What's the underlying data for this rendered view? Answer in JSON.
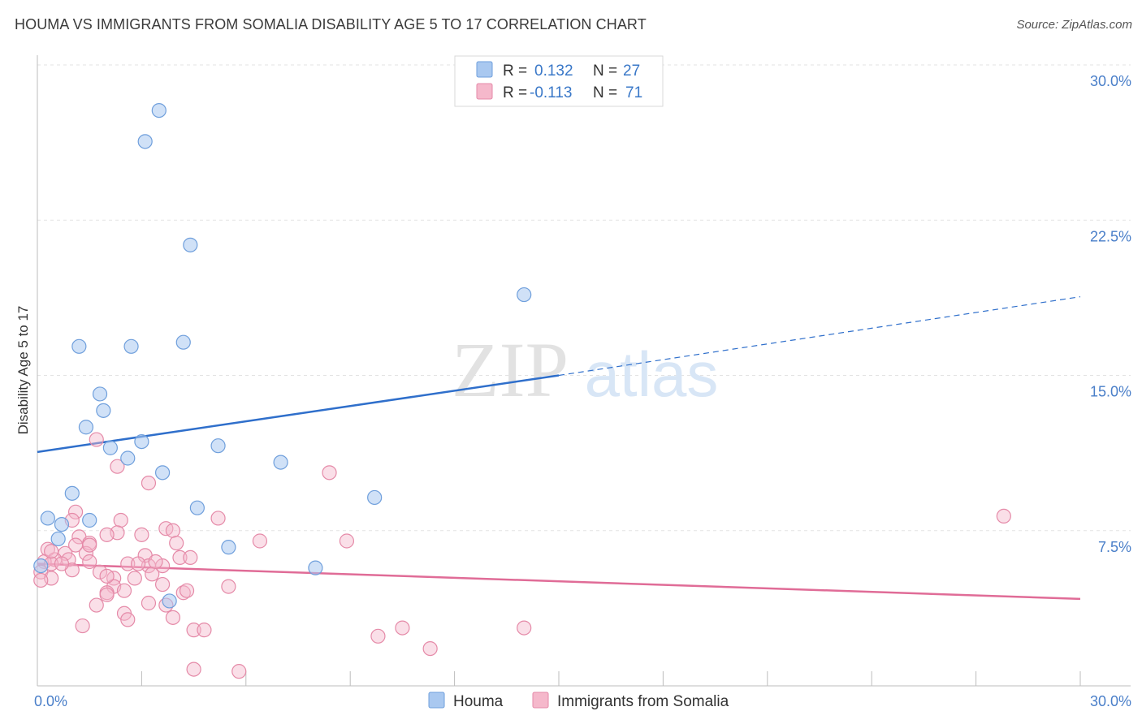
{
  "title": "HOUMA VS IMMIGRANTS FROM SOMALIA DISABILITY AGE 5 TO 17 CORRELATION CHART",
  "source": "Source: ZipAtlas.com",
  "watermark": {
    "zip": "ZIP",
    "atlas": "atlas"
  },
  "colors": {
    "houma_fill": "#a9c8f0",
    "houma_stroke": "#6f9fdc",
    "houma_line": "#2f6fcb",
    "somalia_fill": "#f5b8cb",
    "somalia_stroke": "#e58aa8",
    "somalia_line": "#e06c97",
    "tick_text": "#4a7fc9",
    "grid": "#e3e3e3"
  },
  "legend": {
    "rows": [
      {
        "r_label": "R =",
        "r_value": "0.132",
        "n_label": "N =",
        "n_value": "27"
      },
      {
        "r_label": "R =",
        "r_value": "-0.113",
        "n_label": "N =",
        "n_value": "71"
      }
    ]
  },
  "chart_data": {
    "type": "scatter",
    "title": "HOUMA VS IMMIGRANTS FROM SOMALIA DISABILITY AGE 5 TO 17 CORRELATION CHART",
    "xlabel": "",
    "ylabel": "Disability Age 5 to 17",
    "xlim": [
      0,
      30
    ],
    "ylim": [
      0,
      30
    ],
    "x_tick_labels": [
      "0.0%",
      "30.0%"
    ],
    "y_ticks": [
      7.5,
      15.0,
      22.5,
      30.0
    ],
    "y_tick_labels": [
      "7.5%",
      "15.0%",
      "22.5%",
      "30.0%"
    ],
    "grid": true,
    "legend_position": "top-center",
    "series": [
      {
        "name": "Houma",
        "r": 0.132,
        "n": 27,
        "trend": {
          "x0": 0,
          "y0": 11.3,
          "x1": 15,
          "y1": 15.0,
          "dash_x1": 30,
          "dash_y1": 18.8
        },
        "points": [
          [
            3.5,
            27.8
          ],
          [
            3.1,
            26.3
          ],
          [
            4.4,
            21.3
          ],
          [
            14.0,
            18.9
          ],
          [
            1.2,
            16.4
          ],
          [
            2.7,
            16.4
          ],
          [
            4.2,
            16.6
          ],
          [
            1.8,
            14.1
          ],
          [
            1.9,
            13.3
          ],
          [
            1.4,
            12.5
          ],
          [
            3.0,
            11.8
          ],
          [
            5.2,
            11.6
          ],
          [
            2.1,
            11.5
          ],
          [
            2.6,
            11.0
          ],
          [
            7.0,
            10.8
          ],
          [
            3.6,
            10.3
          ],
          [
            1.0,
            9.3
          ],
          [
            9.7,
            9.1
          ],
          [
            4.6,
            8.6
          ],
          [
            0.3,
            8.1
          ],
          [
            1.5,
            8.0
          ],
          [
            0.7,
            7.8
          ],
          [
            0.6,
            7.1
          ],
          [
            5.5,
            6.7
          ],
          [
            8.0,
            5.7
          ],
          [
            0.1,
            5.8
          ],
          [
            3.8,
            4.1
          ]
        ]
      },
      {
        "name": "Immigrants from Somalia",
        "r": -0.113,
        "n": 71,
        "trend": {
          "x0": 0,
          "y0": 5.9,
          "x1": 30,
          "y1": 4.2
        },
        "points": [
          [
            1.7,
            11.9
          ],
          [
            2.3,
            10.6
          ],
          [
            8.4,
            10.3
          ],
          [
            3.2,
            9.8
          ],
          [
            1.1,
            8.4
          ],
          [
            5.2,
            8.1
          ],
          [
            2.4,
            8.0
          ],
          [
            1.0,
            8.0
          ],
          [
            3.7,
            7.6
          ],
          [
            3.9,
            7.5
          ],
          [
            2.3,
            7.4
          ],
          [
            3.0,
            7.3
          ],
          [
            2.0,
            7.3
          ],
          [
            1.2,
            7.2
          ],
          [
            6.4,
            7.0
          ],
          [
            8.9,
            7.0
          ],
          [
            4.0,
            6.9
          ],
          [
            1.5,
            6.9
          ],
          [
            1.1,
            6.8
          ],
          [
            0.3,
            6.6
          ],
          [
            0.8,
            6.4
          ],
          [
            1.4,
            6.4
          ],
          [
            3.1,
            6.3
          ],
          [
            4.1,
            6.2
          ],
          [
            0.5,
            6.1
          ],
          [
            0.9,
            6.1
          ],
          [
            1.5,
            6.0
          ],
          [
            0.2,
            6.0
          ],
          [
            0.4,
            5.9
          ],
          [
            2.6,
            5.9
          ],
          [
            3.2,
            5.8
          ],
          [
            3.6,
            5.8
          ],
          [
            2.9,
            5.9
          ],
          [
            1.0,
            5.6
          ],
          [
            0.1,
            5.5
          ],
          [
            1.8,
            5.5
          ],
          [
            3.3,
            5.4
          ],
          [
            2.2,
            5.2
          ],
          [
            0.4,
            5.2
          ],
          [
            3.6,
            4.9
          ],
          [
            5.5,
            4.8
          ],
          [
            2.2,
            4.8
          ],
          [
            4.2,
            4.5
          ],
          [
            2.5,
            4.6
          ],
          [
            2.0,
            4.5
          ],
          [
            2.0,
            4.4
          ],
          [
            3.2,
            4.0
          ],
          [
            3.7,
            3.9
          ],
          [
            1.7,
            3.9
          ],
          [
            2.5,
            3.5
          ],
          [
            2.6,
            3.2
          ],
          [
            3.9,
            3.3
          ],
          [
            1.3,
            2.9
          ],
          [
            4.5,
            2.7
          ],
          [
            4.8,
            2.7
          ],
          [
            10.5,
            2.8
          ],
          [
            9.8,
            2.4
          ],
          [
            14.0,
            2.8
          ],
          [
            11.3,
            1.8
          ],
          [
            4.5,
            0.8
          ],
          [
            5.8,
            0.7
          ],
          [
            27.8,
            8.2
          ],
          [
            0.1,
            5.1
          ],
          [
            4.3,
            4.6
          ],
          [
            0.7,
            5.9
          ],
          [
            1.5,
            6.8
          ],
          [
            2.0,
            5.3
          ],
          [
            3.4,
            6.0
          ],
          [
            2.8,
            5.2
          ],
          [
            0.4,
            6.5
          ],
          [
            4.4,
            6.2
          ]
        ]
      }
    ]
  }
}
